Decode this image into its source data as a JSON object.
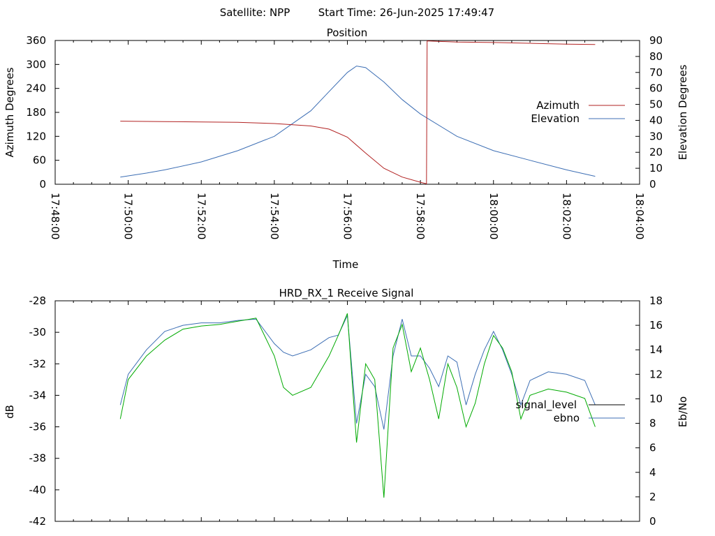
{
  "header": {
    "satellite": "Satellite: NPP",
    "start_time": "Start Time: 26-Jun-2025 17:49:47"
  },
  "colors": {
    "azimuth": "#b22222",
    "elevation": "#3c6eb4",
    "signal_level": "#000000",
    "ebno": "#3c6eb4",
    "signal_trace": "#00aa00"
  },
  "chart_data": [
    {
      "type": "line",
      "title": "Position",
      "xlabel": "Time",
      "ylabel": "Azimuth Degrees",
      "y2label": "Elevation Degrees",
      "xlim": [
        "17:48:00",
        "18:04:00"
      ],
      "ylim": [
        0,
        360
      ],
      "y2lim": [
        0,
        90
      ],
      "x_ticks": [
        "17:48:00",
        "17:50:00",
        "17:52:00",
        "17:54:00",
        "17:56:00",
        "17:58:00",
        "18:00:00",
        "18:02:00",
        "18:04:00"
      ],
      "y_ticks": [
        "0",
        "60",
        "120",
        "180",
        "240",
        "300",
        "360"
      ],
      "y2_ticks": [
        "0",
        "10",
        "20",
        "30",
        "40",
        "50",
        "60",
        "70",
        "80",
        "90"
      ],
      "legend_position": "right",
      "grid": false,
      "series": [
        {
          "name": "Azimuth",
          "axis": "left",
          "x": [
            "17:49:47",
            "17:51:00",
            "17:52:00",
            "17:53:00",
            "17:54:00",
            "17:55:00",
            "17:55:30",
            "17:56:00",
            "17:56:30",
            "17:57:00",
            "17:57:30",
            "17:58:00",
            "17:58:10",
            "17:58:11",
            "17:59:00",
            "18:00:00",
            "18:01:00",
            "18:02:00",
            "18:02:47"
          ],
          "values": [
            158,
            157,
            156,
            155,
            152,
            146,
            138,
            118,
            78,
            40,
            18,
            5,
            1,
            359,
            356,
            355,
            353,
            351,
            350
          ]
        },
        {
          "name": "Elevation",
          "axis": "right",
          "x": [
            "17:49:47",
            "17:50:30",
            "17:51:00",
            "17:52:00",
            "17:53:00",
            "17:54:00",
            "17:55:00",
            "17:55:30",
            "17:56:00",
            "17:56:15",
            "17:56:30",
            "17:57:00",
            "17:57:30",
            "17:58:00",
            "17:59:00",
            "18:00:00",
            "18:01:00",
            "18:02:00",
            "18:02:47"
          ],
          "values": [
            4.5,
            7,
            9,
            14,
            21,
            30,
            46,
            58,
            70,
            74,
            73,
            64,
            53,
            44,
            30,
            21,
            15,
            9,
            5
          ]
        }
      ]
    },
    {
      "type": "line",
      "title": "HRD_RX_1 Receive Signal",
      "xlabel": "",
      "ylabel": "dB",
      "y2label": "Eb/No",
      "xlim": [
        "17:48:00",
        "18:04:00"
      ],
      "ylim": [
        -42,
        -28
      ],
      "y2lim": [
        0,
        18
      ],
      "y_ticks": [
        "-28",
        "-30",
        "-32",
        "-34",
        "-36",
        "-38",
        "-40",
        "-42"
      ],
      "y2_ticks": [
        "0",
        "2",
        "4",
        "6",
        "8",
        "10",
        "12",
        "14",
        "16",
        "18"
      ],
      "legend_position": "right",
      "grid": false,
      "series": [
        {
          "name": "signal_level",
          "axis": "left",
          "x": [
            "17:49:47",
            "17:50:00",
            "17:50:30",
            "17:51:00",
            "17:51:30",
            "17:52:00",
            "17:52:30",
            "17:53:00",
            "17:53:30",
            "17:54:00",
            "17:54:15",
            "17:54:30",
            "17:55:00",
            "17:55:30",
            "17:55:45",
            "17:56:00",
            "17:56:15",
            "17:56:30",
            "17:56:45",
            "17:57:00",
            "17:57:15",
            "17:57:30",
            "17:57:45",
            "17:58:00",
            "17:58:15",
            "17:58:30",
            "17:58:45",
            "17:59:00",
            "17:59:15",
            "17:59:30",
            "17:59:45",
            "18:00:00",
            "18:00:15",
            "18:00:30",
            "18:00:45",
            "18:01:00",
            "18:01:30",
            "18:02:00",
            "18:02:30",
            "18:02:47"
          ],
          "values": [
            -35.5,
            -33,
            -31.5,
            -30.5,
            -29.8,
            -29.6,
            -29.5,
            -29.3,
            -29.1,
            -31.5,
            -33.5,
            -34,
            -33.5,
            -31.5,
            -30.2,
            -28.8,
            -37,
            -32,
            -33,
            -40.5,
            -31,
            -29.5,
            -32.5,
            -31,
            -33,
            -35.5,
            -32,
            -33.5,
            -36,
            -34.5,
            -32,
            -30.2,
            -31,
            -32.5,
            -35.5,
            -34,
            -33.6,
            -33.8,
            -34.2,
            -36
          ]
        },
        {
          "name": "ebno",
          "axis": "right",
          "x": [
            "17:49:47",
            "17:50:00",
            "17:50:30",
            "17:51:00",
            "17:51:30",
            "17:52:00",
            "17:52:30",
            "17:53:00",
            "17:53:30",
            "17:54:00",
            "17:54:15",
            "17:54:30",
            "17:55:00",
            "17:55:30",
            "17:55:45",
            "17:56:00",
            "17:56:15",
            "17:56:30",
            "17:56:45",
            "17:57:00",
            "17:57:15",
            "17:57:30",
            "17:57:45",
            "17:58:00",
            "17:58:15",
            "17:58:30",
            "17:58:45",
            "17:59:00",
            "17:59:15",
            "17:59:30",
            "17:59:45",
            "18:00:00",
            "18:00:15",
            "18:00:30",
            "18:00:45",
            "18:01:00",
            "18:01:30",
            "18:02:00",
            "18:02:30",
            "18:02:47"
          ],
          "values": [
            9.5,
            12,
            14,
            15.5,
            16,
            16.2,
            16.2,
            16.4,
            16.5,
            14.5,
            13.8,
            13.5,
            14,
            15,
            15.2,
            16.8,
            8,
            12,
            11,
            7.5,
            13.5,
            16.5,
            13.5,
            13.5,
            12.5,
            11,
            13.5,
            13,
            9.5,
            12,
            14,
            15.5,
            14,
            12,
            9.5,
            11.5,
            12.2,
            12,
            11.5,
            9.5
          ]
        }
      ]
    }
  ]
}
